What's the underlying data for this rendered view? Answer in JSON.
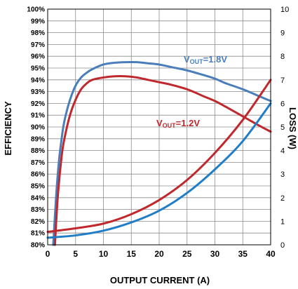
{
  "chart_data": {
    "type": "line",
    "xlabel": "OUTPUT CURRENT (A)",
    "ylabel_left": "EFFICIENCY",
    "ylabel_right": "LOSS (W)",
    "xlim": [
      0,
      40
    ],
    "ylim_left": [
      80,
      100
    ],
    "ylim_right": [
      0,
      10
    ],
    "x_ticks": [
      "0",
      "5",
      "10",
      "15",
      "20",
      "25",
      "30",
      "35",
      "40"
    ],
    "y_left_ticks": [
      "80%",
      "81%",
      "82%",
      "83%",
      "84%",
      "85%",
      "86%",
      "87%",
      "88%",
      "89%",
      "90%",
      "91%",
      "92%",
      "93%",
      "94%",
      "95%",
      "96%",
      "97%",
      "98%",
      "99%",
      "100%"
    ],
    "y_right_ticks": [
      "0",
      "1",
      "2",
      "3",
      "4",
      "5",
      "6",
      "7",
      "8",
      "9",
      "10"
    ],
    "grid": true,
    "annotations": [
      {
        "main": "V",
        "sub": "OUT",
        "rest": "=1.8V",
        "color": "#4a7ebb"
      },
      {
        "main": "V",
        "sub": "OUT",
        "rest": "=1.2V",
        "color": "#c0282d"
      }
    ],
    "series": [
      {
        "name": "VOUT=1.8V",
        "quantity": "efficiency",
        "axis": "left",
        "color": "#4a7ebb",
        "x": [
          1.0,
          1.5,
          2,
          2.5,
          3,
          4,
          5,
          6,
          7,
          8,
          10,
          12,
          14,
          16,
          18,
          20,
          22,
          25,
          28,
          30,
          32,
          35,
          38,
          40
        ],
        "y": [
          80.0,
          84.0,
          87.0,
          89.0,
          90.5,
          92.3,
          93.5,
          94.2,
          94.6,
          94.9,
          95.3,
          95.45,
          95.5,
          95.5,
          95.4,
          95.3,
          95.1,
          94.8,
          94.4,
          94.1,
          93.7,
          93.2,
          92.6,
          92.2
        ]
      },
      {
        "name": "VOUT=1.2V",
        "quantity": "efficiency",
        "axis": "left",
        "color": "#c0282d",
        "x": [
          1.3,
          1.8,
          2.5,
          3,
          4,
          5,
          6,
          7,
          8,
          10,
          12,
          14,
          16,
          18,
          20,
          22,
          25,
          28,
          30,
          32,
          35,
          38,
          40
        ],
        "y": [
          80.0,
          84.0,
          87.5,
          89.0,
          91.0,
          92.3,
          93.2,
          93.7,
          94.0,
          94.2,
          94.3,
          94.3,
          94.2,
          94.0,
          93.8,
          93.6,
          93.2,
          92.6,
          92.2,
          91.7,
          90.9,
          90.1,
          89.6
        ]
      },
      {
        "name": "VOUT=1.8V",
        "quantity": "loss",
        "axis": "right",
        "color": "#1f7ec7",
        "x": [
          0,
          5,
          10,
          15,
          20,
          25,
          30,
          35,
          40
        ],
        "y": [
          0.3,
          0.4,
          0.6,
          0.95,
          1.45,
          2.2,
          3.2,
          4.4,
          6.0
        ]
      },
      {
        "name": "VOUT=1.2V",
        "quantity": "loss",
        "axis": "right",
        "color": "#c0282d",
        "x": [
          0,
          5,
          10,
          15,
          20,
          25,
          30,
          35,
          40
        ],
        "y": [
          0.55,
          0.7,
          0.9,
          1.3,
          1.9,
          2.75,
          3.9,
          5.3,
          7.0
        ]
      }
    ]
  }
}
